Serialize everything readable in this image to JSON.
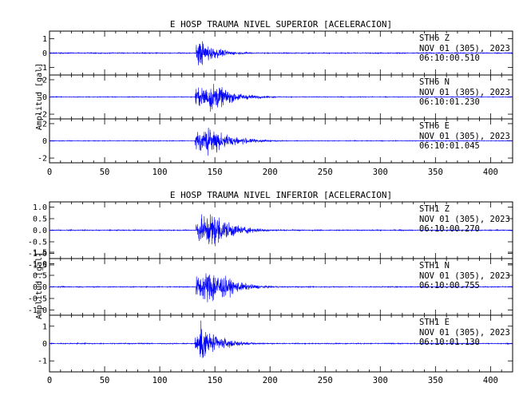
{
  "chart_data": [
    {
      "type": "line",
      "title": "E HOSP TRAUMA NIVEL SUPERIOR [ACELERACION]",
      "ylabel": "Amplitud [gal]",
      "xlim": [
        0,
        420
      ],
      "x_ticks": [
        "0",
        "50",
        "100",
        "150",
        "200",
        "250",
        "300",
        "350",
        "400"
      ],
      "line_color": "#0000ff",
      "series": [
        {
          "name": "STH6 Z",
          "station": "STH6",
          "component": "Z",
          "date": "NOV 01 (305), 2023",
          "time": "06:10:00.510",
          "ylim": [
            -1.5,
            1.5
          ],
          "y_ticks": [
            "1",
            "0",
            "-1"
          ],
          "noise_amplitude": 0.05,
          "event": {
            "onset_s": 133,
            "peak_s": 136,
            "peak_amplitude": 1.4,
            "decay_s": 15,
            "end_s": 230
          }
        },
        {
          "name": "STH6 N",
          "station": "STH6",
          "component": "N",
          "date": "NOV 01 (305), 2023",
          "time": "06:10:01.230",
          "ylim": [
            -2.5,
            2.5
          ],
          "y_ticks": [
            "2",
            "0",
            "-2"
          ],
          "noise_amplitude": 0.06,
          "event": {
            "onset_s": 132,
            "peak_s": 148,
            "peak_amplitude": 2.4,
            "decay_s": 18,
            "end_s": 230
          }
        },
        {
          "name": "STH6 E",
          "station": "STH6",
          "component": "E",
          "date": "NOV 01 (305), 2023",
          "time": "06:10:01.045",
          "ylim": [
            -2.5,
            2.5
          ],
          "y_ticks": [
            "2",
            "0",
            "-2"
          ],
          "noise_amplitude": 0.06,
          "event": {
            "onset_s": 132,
            "peak_s": 145,
            "peak_amplitude": 2.3,
            "decay_s": 20,
            "end_s": 240
          }
        }
      ]
    },
    {
      "type": "line",
      "title": "E HOSP TRAUMA NIVEL INFERIOR [ACELERACION]",
      "ylabel": "Amplitud [gal]",
      "xlim": [
        0,
        420
      ],
      "x_ticks": [
        "0",
        "50",
        "100",
        "150",
        "200",
        "250",
        "300",
        "350",
        "400"
      ],
      "line_color": "#0000ff",
      "series": [
        {
          "name": "STH1 Z",
          "station": "STH1",
          "component": "Z",
          "date": "NOV 01 (305), 2023",
          "time": "06:10:00.270",
          "ylim": [
            -1.2,
            1.2
          ],
          "y_ticks": [
            "1.0",
            "0.5",
            "0.0",
            "-0.5",
            "-1.0",
            "-1.5"
          ],
          "noise_amplitude": 0.03,
          "event": {
            "onset_s": 133,
            "peak_s": 148,
            "peak_amplitude": 1.15,
            "decay_s": 18,
            "end_s": 230
          }
        },
        {
          "name": "STH1 N",
          "station": "STH1",
          "component": "N",
          "date": "NOV 01 (305), 2023",
          "time": "06:10:00.755",
          "ylim": [
            -1.2,
            1.2
          ],
          "y_ticks": [
            "1.5",
            "1.0",
            "0.5",
            "0.0",
            "-0.5",
            "-1.0"
          ],
          "noise_amplitude": 0.03,
          "event": {
            "onset_s": 133,
            "peak_s": 148,
            "peak_amplitude": 1.15,
            "decay_s": 18,
            "end_s": 240
          }
        },
        {
          "name": "STH1 E",
          "station": "STH1",
          "component": "E",
          "date": "NOV 01 (305), 2023",
          "time": "06:10:01.130",
          "ylim": [
            -1.6,
            1.6
          ],
          "y_ticks": [
            "1",
            "0",
            "-1"
          ],
          "noise_amplitude": 0.04,
          "event": {
            "onset_s": 132,
            "peak_s": 138,
            "peak_amplitude": 1.5,
            "decay_s": 16,
            "end_s": 230
          }
        }
      ]
    }
  ]
}
